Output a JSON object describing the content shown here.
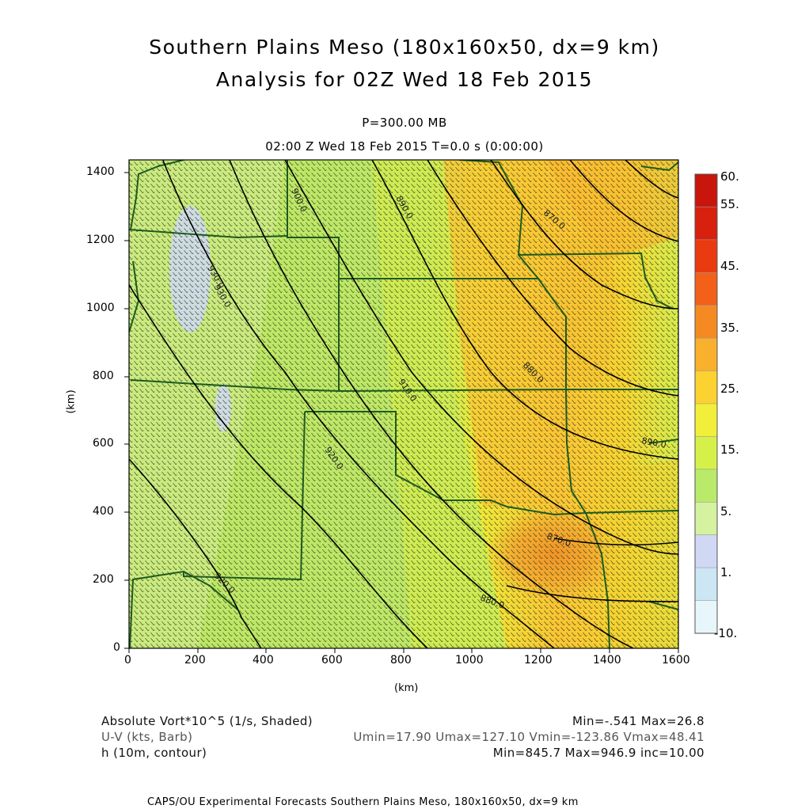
{
  "title_line1": "Southern Plains Meso (180x160x50, dx=9 km)",
  "title_line2": "Analysis for 02Z Wed 18 Feb 2015",
  "level": "P=300.00 MB",
  "time_line": "02:00 Z Wed 18 Feb 2015    T=0.0 s (0:00:00)",
  "axes": {
    "x_label": "(km)",
    "y_label": "(km)",
    "x_ticks": [
      "0",
      "200",
      "400",
      "600",
      "800",
      "1000",
      "1200",
      "1400",
      "1600"
    ],
    "y_ticks": [
      "0",
      "200",
      "400",
      "600",
      "800",
      "1000",
      "1200",
      "1400"
    ]
  },
  "colorbar": {
    "labels": [
      "60.",
      "55.",
      "45.",
      "35.",
      "25.",
      "15.",
      "5.",
      "1.",
      "-10."
    ],
    "colors": [
      "#c8160c",
      "#d8200e",
      "#ea3a10",
      "#f2601a",
      "#f58a22",
      "#f9b02c",
      "#fcd230",
      "#f2ef3a",
      "#d6f04a",
      "#baea6a",
      "#d4f2a0",
      "#d0d8f4",
      "#cce6f4",
      "#e6f6fa"
    ]
  },
  "contour_labels": [
    "920.0",
    "930.0",
    "930.0",
    "920.0",
    "910.0",
    "900.0",
    "890.0",
    "880.0",
    "870.0",
    "870.0",
    "880.0",
    "890.0"
  ],
  "info": {
    "vort_label": "Absolute Vort*10^5 (1/s, Shaded)",
    "vort_stats": "Min=-.541 Max=26.8",
    "wind_label": "U-V (kts, Barb)",
    "wind_stats": "Umin=17.90 Umax=127.10 Vmin=-123.86 Vmax=48.41",
    "h_label": "h (10m, contour)",
    "h_stats": "Min=845.7 Max=946.9 inc=10.00"
  },
  "footer": "CAPS/OU Experimental Forecasts  Southern Plains Meso, 180x160x50, dx=9 km"
}
